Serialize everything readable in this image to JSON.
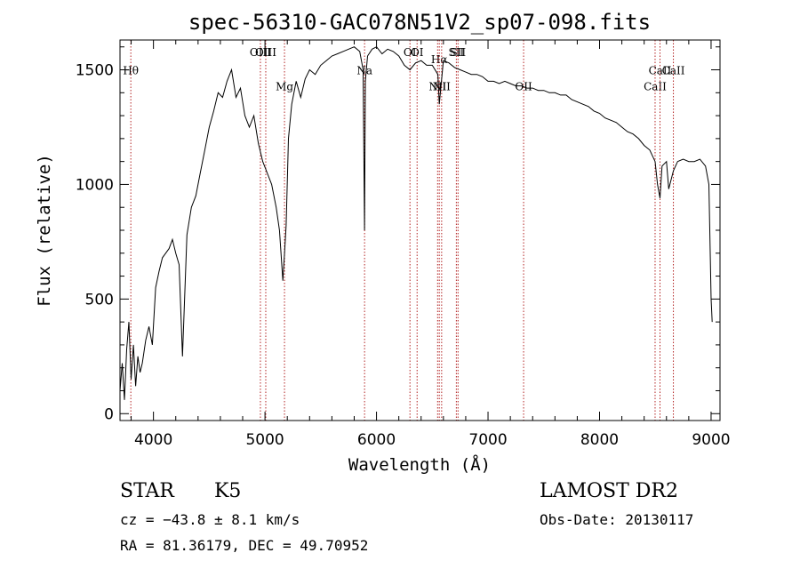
{
  "chart_data": {
    "type": "line",
    "title": "spec-56310-GAC078N51V2_sp07-098.fits",
    "xlabel": "Wavelength (Å)",
    "ylabel": "Flux (relative)",
    "xlim": [
      3700,
      9080
    ],
    "ylim": [
      -30,
      1630
    ],
    "xticks": [
      4000,
      5000,
      6000,
      7000,
      8000,
      9000
    ],
    "yticks": [
      0,
      500,
      1000,
      1500
    ],
    "grid": false,
    "line_color": "#000000",
    "marker_color": "#b22222",
    "series": [
      {
        "x": [
          3700,
          3720,
          3740,
          3760,
          3780,
          3800,
          3820,
          3840,
          3860,
          3880,
          3900,
          3930,
          3960,
          3990,
          4020,
          4050,
          4080,
          4110,
          4140,
          4170,
          4200,
          4230,
          4260,
          4300,
          4340,
          4380,
          4420,
          4460,
          4500,
          4540,
          4580,
          4620,
          4660,
          4700,
          4740,
          4780,
          4820,
          4860,
          4900,
          4940,
          4980,
          5020,
          5060,
          5100,
          5130,
          5160,
          5175,
          5190,
          5210,
          5240,
          5280,
          5320,
          5360,
          5400,
          5450,
          5500,
          5550,
          5600,
          5650,
          5700,
          5750,
          5800,
          5850,
          5880,
          5893,
          5900,
          5920,
          5960,
          6000,
          6050,
          6100,
          6150,
          6200,
          6250,
          6300,
          6350,
          6400,
          6450,
          6500,
          6550,
          6563,
          6600,
          6650,
          6700,
          6750,
          6800,
          6850,
          6900,
          6950,
          7000,
          7050,
          7100,
          7150,
          7200,
          7250,
          7300,
          7350,
          7400,
          7450,
          7500,
          7550,
          7600,
          7650,
          7700,
          7750,
          7800,
          7850,
          7900,
          7950,
          8000,
          8050,
          8100,
          8150,
          8200,
          8250,
          8300,
          8350,
          8400,
          8450,
          8498,
          8520,
          8542,
          8560,
          8600,
          8620,
          8662,
          8700,
          8750,
          8800,
          8850,
          8900,
          8950,
          8980,
          9000,
          9010
        ],
        "y": [
          100,
          220,
          60,
          280,
          400,
          150,
          300,
          120,
          250,
          180,
          220,
          320,
          380,
          300,
          550,
          620,
          680,
          700,
          720,
          760,
          700,
          650,
          250,
          780,
          900,
          950,
          1050,
          1150,
          1250,
          1320,
          1400,
          1380,
          1450,
          1500,
          1380,
          1420,
          1300,
          1250,
          1300,
          1180,
          1100,
          1050,
          1000,
          900,
          800,
          580,
          700,
          820,
          1200,
          1350,
          1450,
          1380,
          1460,
          1500,
          1480,
          1520,
          1540,
          1560,
          1570,
          1580,
          1590,
          1600,
          1580,
          1500,
          800,
          1450,
          1560,
          1590,
          1600,
          1570,
          1590,
          1580,
          1560,
          1520,
          1500,
          1530,
          1540,
          1520,
          1520,
          1480,
          1350,
          1540,
          1530,
          1510,
          1500,
          1490,
          1480,
          1480,
          1470,
          1450,
          1450,
          1440,
          1450,
          1440,
          1430,
          1430,
          1420,
          1420,
          1410,
          1410,
          1400,
          1400,
          1390,
          1390,
          1370,
          1360,
          1350,
          1340,
          1320,
          1310,
          1290,
          1280,
          1270,
          1250,
          1230,
          1220,
          1200,
          1170,
          1150,
          1100,
          1000,
          940,
          1080,
          1100,
          980,
          1060,
          1100,
          1110,
          1100,
          1100,
          1110,
          1080,
          1000,
          500,
          400
        ]
      }
    ],
    "spectral_lines": [
      {
        "name": "Hθ",
        "wavelength": 3797,
        "label_y": 1480
      },
      {
        "name": "OIII",
        "wavelength": 4959,
        "label_y": 1560
      },
      {
        "name": "OIII",
        "wavelength": 5007,
        "label_y": 1560
      },
      {
        "name": "Mg",
        "wavelength": 5175,
        "label_y": 1410
      },
      {
        "name": "Na",
        "wavelength": 5893,
        "label_y": 1480
      },
      {
        "name": "OI",
        "wavelength": 6300,
        "label_y": 1560
      },
      {
        "name": "OI",
        "wavelength": 6364,
        "label_y": 1560
      },
      {
        "name": "Hα",
        "wavelength": 6563,
        "label_y": 1530
      },
      {
        "name": "NII",
        "wavelength": 6548,
        "label_y": 1410
      },
      {
        "name": "NII",
        "wavelength": 6584,
        "label_y": 1410
      },
      {
        "name": "OII",
        "wavelength": 7319,
        "label_y": 1410
      },
      {
        "name": "SII",
        "wavelength": 6716,
        "label_y": 1560
      },
      {
        "name": "SII",
        "wavelength": 6731,
        "label_y": 1560
      },
      {
        "name": "CaII",
        "wavelength": 8498,
        "label_y": 1410
      },
      {
        "name": "CaII",
        "wavelength": 8542,
        "label_y": 1480
      },
      {
        "name": "CaII",
        "wavelength": 8662,
        "label_y": 1480
      }
    ]
  },
  "info": {
    "object_class": "STAR",
    "subclass": "K5",
    "survey": "LAMOST DR2",
    "redshift": "cz = −43.8 ± 8.1 km/s",
    "obs_date": "Obs-Date: 20130117",
    "coords": "RA =  81.36179, DEC =  49.70952"
  }
}
